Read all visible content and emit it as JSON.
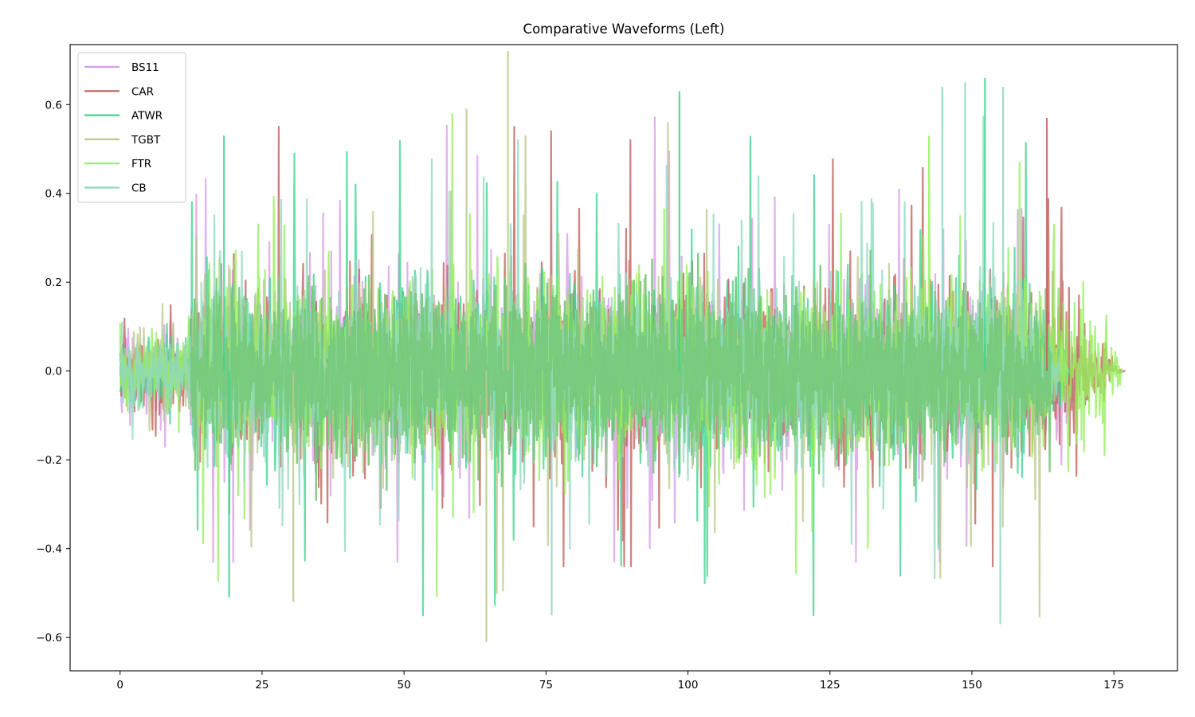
{
  "chart_data": {
    "type": "line",
    "title": "Comparative Waveforms (Left)",
    "xlabel": "",
    "ylabel": "",
    "xlim": [
      -8.8,
      186.2
    ],
    "ylim": [
      -0.675,
      0.735
    ],
    "x_ticks": [
      0,
      25,
      50,
      75,
      100,
      125,
      150,
      175
    ],
    "x_tick_labels": [
      "0",
      "25",
      "50",
      "75",
      "100",
      "125",
      "150",
      "175"
    ],
    "y_ticks": [
      -0.6,
      -0.4,
      -0.2,
      0.0,
      0.2,
      0.4,
      0.6
    ],
    "y_tick_labels": [
      "−0.6",
      "−0.4",
      "−0.2",
      "0.0",
      "0.2",
      "0.4",
      "0.6"
    ],
    "grid": false,
    "legend_position": "upper left",
    "series": [
      {
        "name": "BS11",
        "color": "#d89ee8",
        "duration": 170.5,
        "peak_max": 0.58,
        "peak_min": -0.43
      },
      {
        "name": "CAR",
        "color": "#c0625a",
        "duration": 177.0,
        "peak_max": 0.55,
        "peak_min": -0.44
      },
      {
        "name": "ATWR",
        "color": "#3fd38f",
        "duration": 167.5,
        "peak_max": 0.66,
        "peak_min": -0.55
      },
      {
        "name": "TGBT",
        "color": "#b8c98a",
        "duration": 167.0,
        "peak_max": 0.72,
        "peak_min": -0.61
      },
      {
        "name": "FTR",
        "color": "#94ef5a",
        "duration": 176.5,
        "peak_max": 0.58,
        "peak_min": -0.52
      },
      {
        "name": "CB",
        "color": "#8fd8c0",
        "duration": 165.5,
        "peak_max": 0.65,
        "peak_min": -0.57
      }
    ],
    "envelope_notes": {
      "intro_0_to_12s": "low amplitude ~ +/-0.1 to 0.2",
      "body_12_to_165s": "dense, typical +/-0.25, peaks +/-0.4 to 0.7",
      "outro_165_to_177s": "decays to 0; CAR tail longest (~177s)"
    }
  }
}
